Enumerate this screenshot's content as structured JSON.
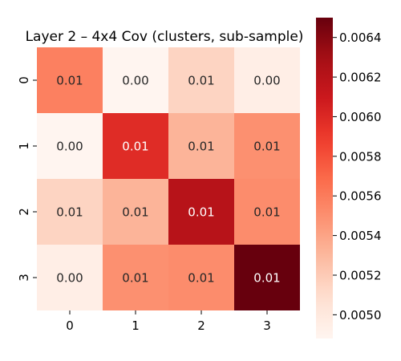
{
  "chart_data": {
    "type": "heatmap",
    "title": "Layer 2 – 4x4 Cov (clusters, sub-sample)",
    "xlabel": "",
    "ylabel": "",
    "x_categories": [
      "0",
      "1",
      "2",
      "3"
    ],
    "y_categories": [
      "0",
      "1",
      "2",
      "3"
    ],
    "values": [
      [
        0.00558,
        0.00488,
        0.00515,
        0.00495
      ],
      [
        0.00488,
        0.00598,
        0.00532,
        0.0055
      ],
      [
        0.00515,
        0.00532,
        0.0062,
        0.00552
      ],
      [
        0.00495,
        0.0055,
        0.00552,
        0.0065
      ]
    ],
    "cell_labels": [
      [
        "0.01",
        "0.00",
        "0.01",
        "0.00"
      ],
      [
        "0.00",
        "0.01",
        "0.01",
        "0.01"
      ],
      [
        "0.01",
        "0.01",
        "0.01",
        "0.01"
      ],
      [
        "0.00",
        "0.01",
        "0.01",
        "0.01"
      ]
    ],
    "colormap": "Reds",
    "colorbar": {
      "min": 0.00488,
      "max": 0.0065,
      "ticks": [
        0.005,
        0.0052,
        0.0054,
        0.0056,
        0.0058,
        0.006,
        0.0062,
        0.0064
      ],
      "tick_labels": [
        "0.0050",
        "0.0052",
        "0.0054",
        "0.0056",
        "0.0058",
        "0.0060",
        "0.0062",
        "0.0064"
      ]
    }
  }
}
